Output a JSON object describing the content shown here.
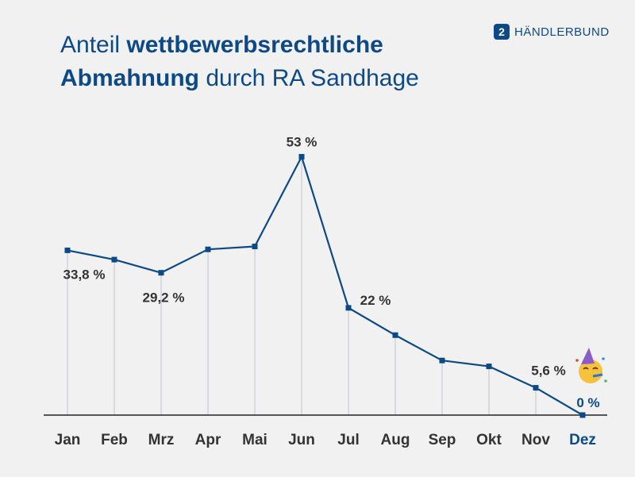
{
  "header": {
    "title_line1_prefix": "Anteil ",
    "title_line1_bold": "wettbewerbsrechtliche",
    "title_line2_bold": "Abmahnung",
    "title_line2_suffix": " durch RA Sandhage",
    "brand_text": "HÄNDLERBUND",
    "brand_icon": "haendlerbund-logo-icon"
  },
  "chart_data": {
    "type": "line",
    "title": "Anteil wettbewerbsrechtliche Abmahnung durch RA Sandhage",
    "categories": [
      "Jan",
      "Feb",
      "Mrz",
      "Apr",
      "Mai",
      "Jun",
      "Jul",
      "Aug",
      "Sep",
      "Okt",
      "Nov",
      "Dez"
    ],
    "values": [
      33.8,
      31.9,
      29.2,
      34.0,
      34.6,
      53,
      22,
      16.4,
      11.2,
      10.0,
      5.6,
      0
    ],
    "data_labels": [
      {
        "index": 0,
        "text": "33,8 %"
      },
      {
        "index": 2,
        "text": "29,2 %"
      },
      {
        "index": 5,
        "text": "53 %"
      },
      {
        "index": 6,
        "text": "22 %"
      },
      {
        "index": 10,
        "text": "5,6 %"
      },
      {
        "index": 11,
        "text": "0 %"
      }
    ],
    "highlight_index": 11,
    "highlight_icon": "party-face-emoji-icon",
    "ylim": [
      0,
      60
    ],
    "xlabel": "",
    "ylabel": "",
    "grid": "vertical drop lines",
    "legend": "none",
    "colors": {
      "line": "#0d4a85",
      "highlight": "#0d4a85",
      "droplines": "#c9ccd2",
      "text": "#333333"
    }
  }
}
